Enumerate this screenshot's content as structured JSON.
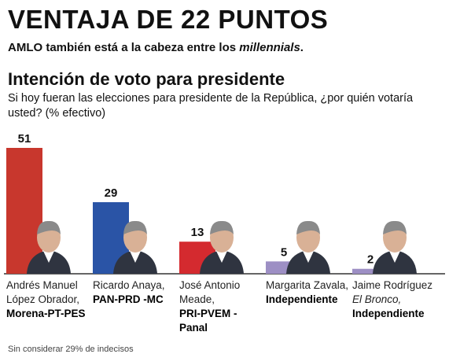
{
  "headline": "VENTAJA DE 22 PUNTOS",
  "subhead": {
    "text": "AMLO también está a la cabeza entre los ",
    "emphasis": "millennials",
    "end": "."
  },
  "chart_data": {
    "type": "bar",
    "title": "Intención de voto para presidente",
    "subtitle": "Si hoy fueran las elecciones para presidente de la República, ¿por quién votaría usted? (% efectivo)",
    "ylim": [
      0,
      51
    ],
    "grid": false,
    "legend": "none",
    "categories": [
      {
        "name": "Andrés Manuel López Obrador,",
        "alias": "",
        "party": "Morena-PT-PES",
        "value": 51,
        "color": "#c8372d"
      },
      {
        "name": "Ricardo Anaya,",
        "alias": "",
        "party": "PAN-PRD -MC",
        "value": 29,
        "color": "#2a54a6"
      },
      {
        "name": "José Antonio Meade,",
        "alias": "",
        "party": "PRI-PVEM -Panal",
        "value": 13,
        "color": "#d42a2f"
      },
      {
        "name": "Margarita Zavala,",
        "alias": "",
        "party": "Independiente",
        "value": 5,
        "color": "#9d8fc4"
      },
      {
        "name": "Jaime Rodríguez",
        "alias": "El Bronco,",
        "party": "Independiente",
        "value": 2,
        "color": "#9d8fc4"
      }
    ]
  },
  "footnote": "Sin considerar 29% de indecisos",
  "colors": {
    "baseline": "#333333",
    "skin": "#d9b196",
    "hair": "#8a8a8a",
    "suit": "#2f3440"
  }
}
